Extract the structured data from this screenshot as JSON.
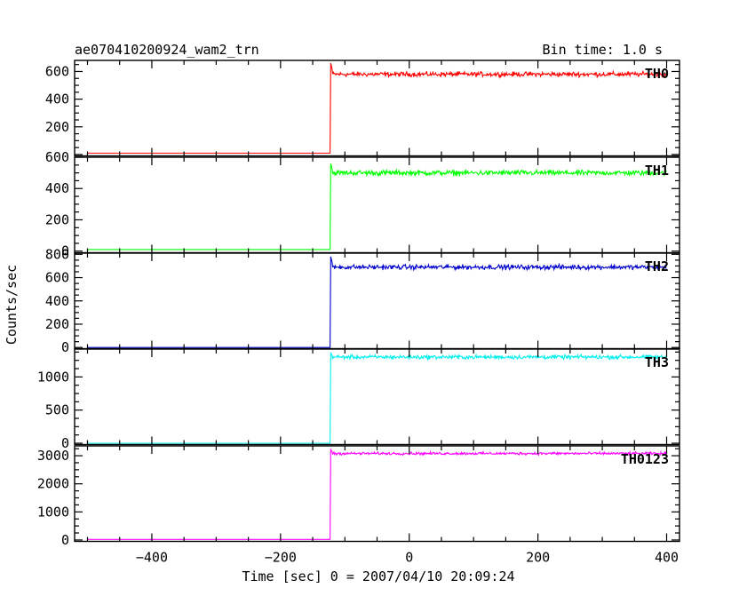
{
  "header": {
    "title": "ae070410200924_wam2_trn",
    "bin_time": "Bin time: 1.0 s"
  },
  "chart_data": {
    "type": "line",
    "xlabel": "Time [sec] 0 = 2007/04/10 20:09:24",
    "ylabel": "Counts/sec",
    "xlim": [
      -520,
      420
    ],
    "x_ticks": [
      -400,
      -200,
      0,
      200,
      400
    ],
    "x_tick_labels": [
      "−400",
      "−200",
      "0",
      "200",
      "400"
    ],
    "panels": [
      {
        "label": "TH0",
        "color": "#ff0000",
        "ylim": [
          -10,
          680
        ],
        "yticks": [
          200,
          400,
          600
        ],
        "ytick_labels": [
          "200",
          "400",
          "600"
        ],
        "x_start": -500,
        "x_end": 400,
        "x_step": -122,
        "pre_level": 10,
        "post_level": 580,
        "noise_amp": 25,
        "spike": 660
      },
      {
        "label": "TH1",
        "color": "#00ff00",
        "ylim": [
          -10,
          600
        ],
        "yticks": [
          0,
          200,
          400,
          600
        ],
        "ytick_labels": [
          "0",
          "200",
          "400",
          "600"
        ],
        "x_start": -500,
        "x_end": 400,
        "x_step": -122,
        "pre_level": 10,
        "post_level": 500,
        "noise_amp": 25,
        "spike": 560
      },
      {
        "label": "TH2",
        "color": "#0000cc",
        "ylim": [
          -10,
          810
        ],
        "yticks": [
          0,
          200,
          400,
          600,
          800
        ],
        "ytick_labels": [
          "0",
          "200",
          "400",
          "600",
          "800"
        ],
        "x_start": -500,
        "x_end": 400,
        "x_step": -122,
        "pre_level": 0,
        "post_level": 690,
        "noise_amp": 30,
        "spike": 780
      },
      {
        "label": "TH3",
        "color": "#00eeee",
        "ylim": [
          -20,
          1420
        ],
        "yticks": [
          0,
          500,
          1000
        ],
        "ytick_labels": [
          "0",
          "500",
          "1000"
        ],
        "x_start": -500,
        "x_end": 400,
        "x_step": -122,
        "pre_level": 0,
        "post_level": 1300,
        "noise_amp": 45,
        "spike": 1360
      },
      {
        "label": "TH0123",
        "color": "#ff00ff",
        "ylim": [
          -50,
          3350
        ],
        "yticks": [
          0,
          1000,
          2000,
          3000
        ],
        "ytick_labels": [
          "0",
          "1000",
          "2000",
          "3000"
        ],
        "x_start": -500,
        "x_end": 400,
        "x_step": -122,
        "pre_level": 20,
        "post_level": 3080,
        "noise_amp": 70,
        "spike": 3220
      }
    ]
  }
}
